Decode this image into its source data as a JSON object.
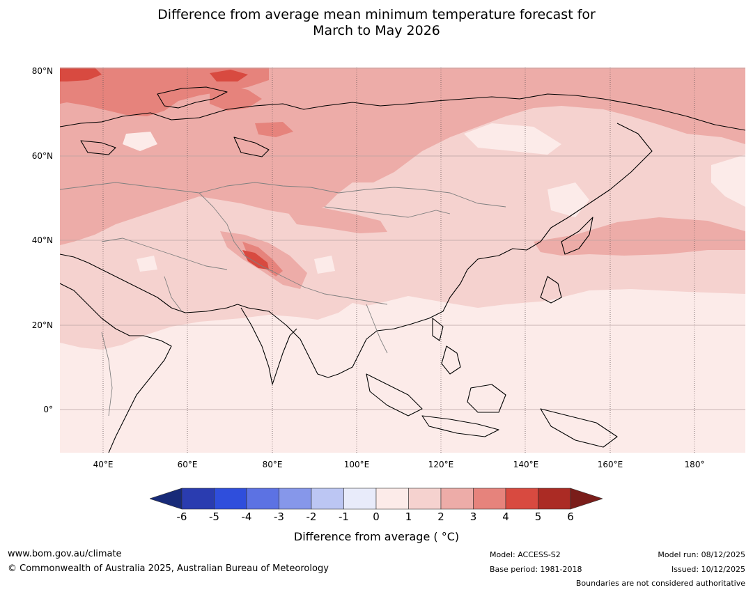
{
  "title": {
    "line1": "Difference from average mean minimum temperature forecast for",
    "line2": "March to May 2026"
  },
  "map": {
    "lat_labels": [
      "80°N",
      "60°N",
      "40°N",
      "20°N",
      "0°"
    ],
    "lon_labels": [
      "40°E",
      "60°E",
      "80°E",
      "100°E",
      "120°E",
      "140°E",
      "160°E",
      "180°"
    ]
  },
  "colorbar": {
    "ticks": [
      "-6",
      "-5",
      "-4",
      "-3",
      "-2",
      "-1",
      "0",
      "1",
      "2",
      "3",
      "4",
      "5",
      "6"
    ],
    "colors": [
      "#172a78",
      "#2a3cb0",
      "#2f4edc",
      "#5c72e3",
      "#8697ea",
      "#bcc6f3",
      "#e8ebfa",
      "#fcebe9",
      "#f5d2cf",
      "#edaca8",
      "#e6837c",
      "#d84a40",
      "#ab2b24",
      "#7a1d1a"
    ],
    "label": "Difference from average ( °C)"
  },
  "footer": {
    "website": "www.bom.gov.au/climate",
    "copyright": "© Commonwealth of Australia 2025, Australian Bureau of Meteorology",
    "model": "Model: ACCESS-S2",
    "base_period": "Base period: 1981-2018",
    "model_run": "Model run: 08/12/2025",
    "issued": "Issued: 10/12/2025",
    "disclaimer": "Boundaries are not considered authoritative"
  }
}
